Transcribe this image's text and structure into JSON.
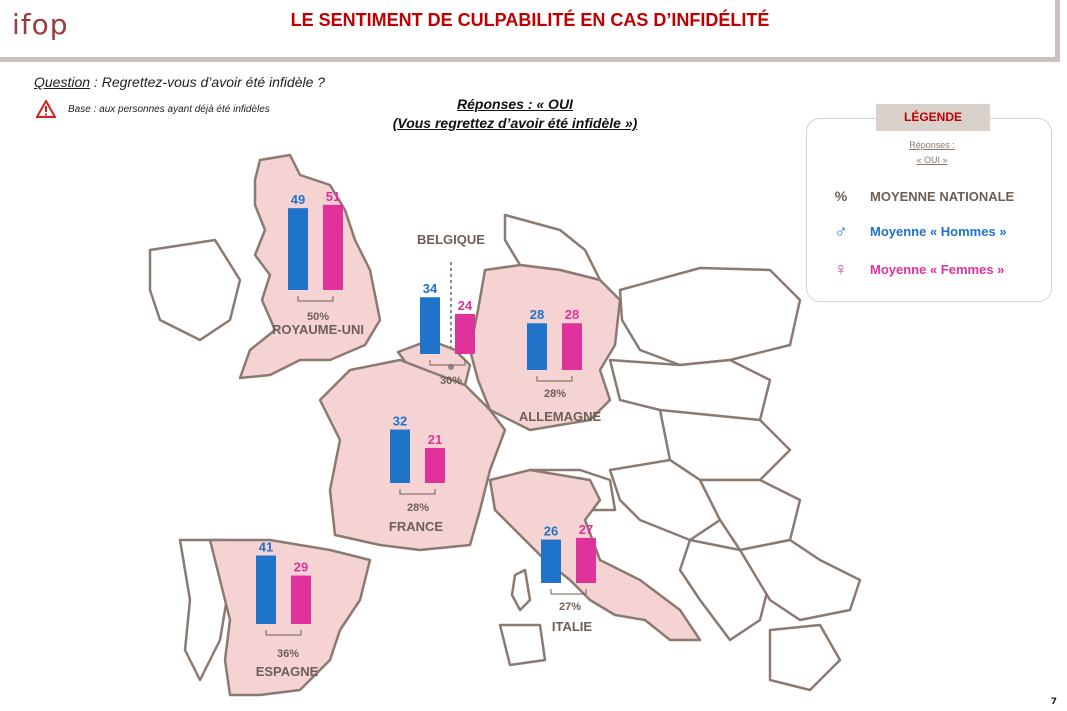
{
  "header": {
    "logo": "ifop",
    "title": "LE SENTIMENT DE CULPABILITÉ EN CAS D’INFIDÉLITÉ"
  },
  "question": {
    "prefix": "Question",
    "text": " : Regrettez-vous d’avoir été infidèle ?"
  },
  "base": {
    "text": "Base : aux personnes ayant déjà été infidèles",
    "icon": "warning-icon"
  },
  "answers": {
    "line1": "Réponses : « OUI",
    "line2": "(Vous regrettez d’avoir été infidèle »)"
  },
  "legend": {
    "title": "LÉGENDE",
    "sub1": "Réponses :",
    "sub2": "« OUI »",
    "avg_symbol": "%",
    "avg_label": "MOYENNE NATIONALE",
    "men_label": "Moyenne « Hommes »",
    "women_label": "Moyenne « Femmes »"
  },
  "colors": {
    "men": "#1f73c8",
    "women": "#e0329b",
    "land": "#f6d3d3",
    "border": "#8b7a70",
    "label": "#6d5f56"
  },
  "page_number": "7",
  "chart_data": {
    "type": "bar",
    "title": "Réponses : « OUI (Vous regrettez d’avoir été infidèle »)",
    "series_names": [
      "Moyenne « Hommes »",
      "Moyenne « Femmes »"
    ],
    "countries": [
      {
        "name": "ROYAUME-UNI",
        "men": 49,
        "women": 51,
        "average": "50%"
      },
      {
        "name": "BELGIQUE",
        "men": 34,
        "women": 24,
        "average": "30%"
      },
      {
        "name": "ALLEMAGNE",
        "men": 28,
        "women": 28,
        "average": "28%"
      },
      {
        "name": "FRANCE",
        "men": 32,
        "women": 21,
        "average": "28%"
      },
      {
        "name": "ITALIE",
        "men": 26,
        "women": 27,
        "average": "27%"
      },
      {
        "name": "ESPAGNE",
        "men": 41,
        "women": 29,
        "average": "36%"
      }
    ]
  }
}
